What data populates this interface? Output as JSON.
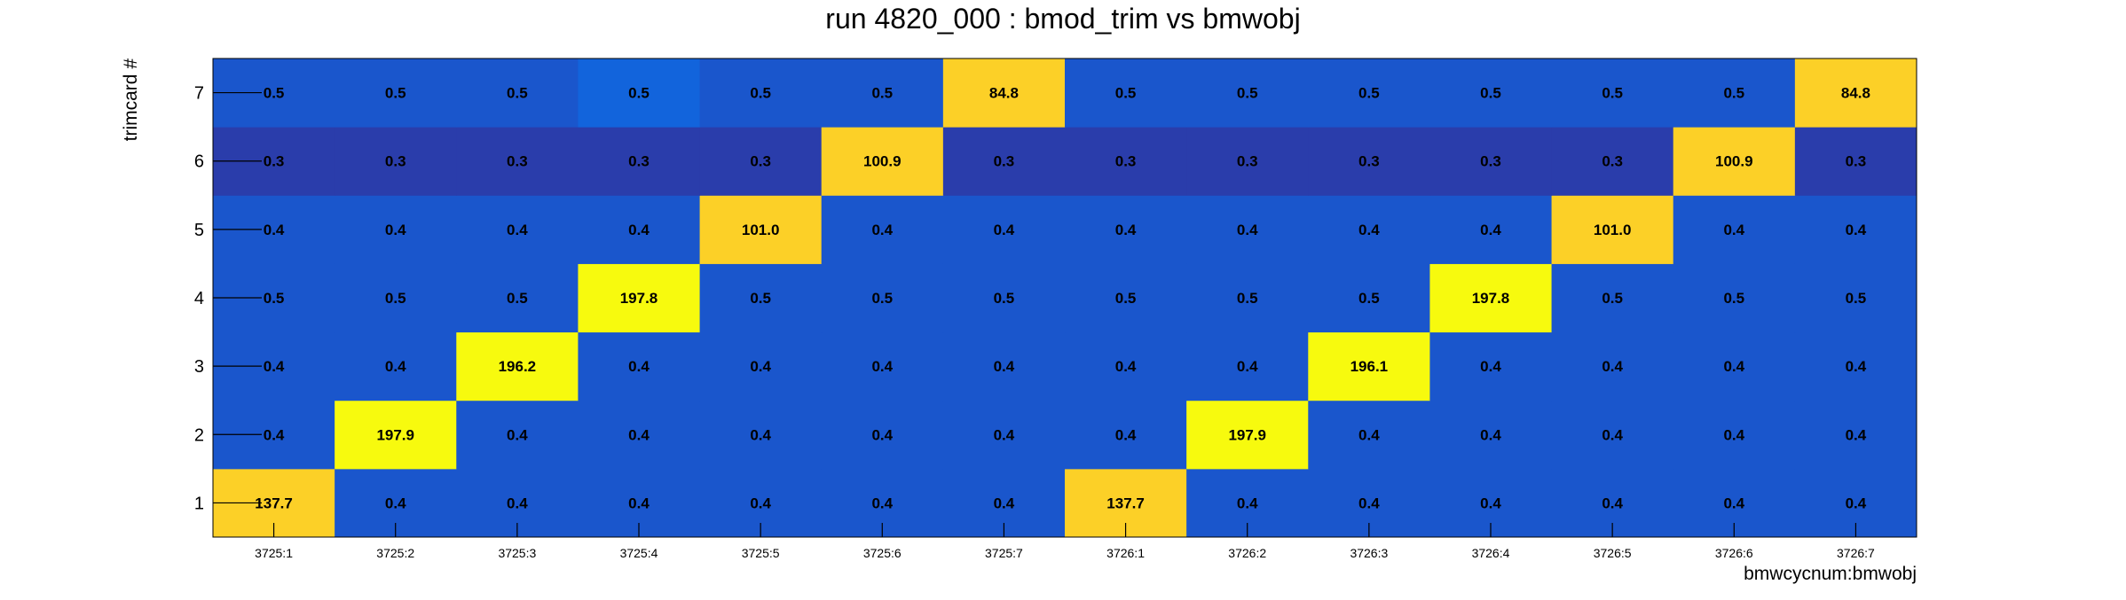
{
  "chart_data": {
    "type": "heatmap",
    "title": "run 4820_000 : bmod_trim vs bmwobj",
    "xlabel": "bmwcycnum:bmwobj",
    "ylabel": "trimcard #",
    "x_categories": [
      "3725:1",
      "3725:2",
      "3725:3",
      "3725:4",
      "3725:5",
      "3725:6",
      "3725:7",
      "3726:1",
      "3726:2",
      "3726:3",
      "3726:4",
      "3726:5",
      "3726:6",
      "3726:7"
    ],
    "y_categories": [
      "1",
      "2",
      "3",
      "4",
      "5",
      "6",
      "7"
    ],
    "values": [
      [
        "137.7",
        "0.4",
        "0.4",
        "0.4",
        "0.4",
        "0.4",
        "0.4",
        "137.7",
        "0.4",
        "0.4",
        "0.4",
        "0.4",
        "0.4",
        "0.4"
      ],
      [
        "0.4",
        "197.9",
        "0.4",
        "0.4",
        "0.4",
        "0.4",
        "0.4",
        "0.4",
        "197.9",
        "0.4",
        "0.4",
        "0.4",
        "0.4",
        "0.4"
      ],
      [
        "0.4",
        "0.4",
        "196.2",
        "0.4",
        "0.4",
        "0.4",
        "0.4",
        "0.4",
        "0.4",
        "196.1",
        "0.4",
        "0.4",
        "0.4",
        "0.4"
      ],
      [
        "0.5",
        "0.5",
        "0.5",
        "197.8",
        "0.5",
        "0.5",
        "0.5",
        "0.5",
        "0.5",
        "0.5",
        "197.8",
        "0.5",
        "0.5",
        "0.5"
      ],
      [
        "0.4",
        "0.4",
        "0.4",
        "0.4",
        "101.0",
        "0.4",
        "0.4",
        "0.4",
        "0.4",
        "0.4",
        "0.4",
        "101.0",
        "0.4",
        "0.4"
      ],
      [
        "0.3",
        "0.3",
        "0.3",
        "0.3",
        "0.3",
        "100.9",
        "0.3",
        "0.3",
        "0.3",
        "0.3",
        "0.3",
        "0.3",
        "100.9",
        "0.3"
      ],
      [
        "0.5",
        "0.5",
        "0.5",
        "0.5",
        "0.5",
        "0.5",
        "84.8",
        "0.5",
        "0.5",
        "0.5",
        "0.5",
        "0.5",
        "0.5",
        "84.8"
      ]
    ],
    "colors": {
      "low_row_3": "#2a3dab",
      "low_default": "#1a56cc",
      "highlight_alt": "#1264dc",
      "mid": "#fcd027",
      "high": "#f7fa0e",
      "grid_tick": "#000000"
    }
  }
}
